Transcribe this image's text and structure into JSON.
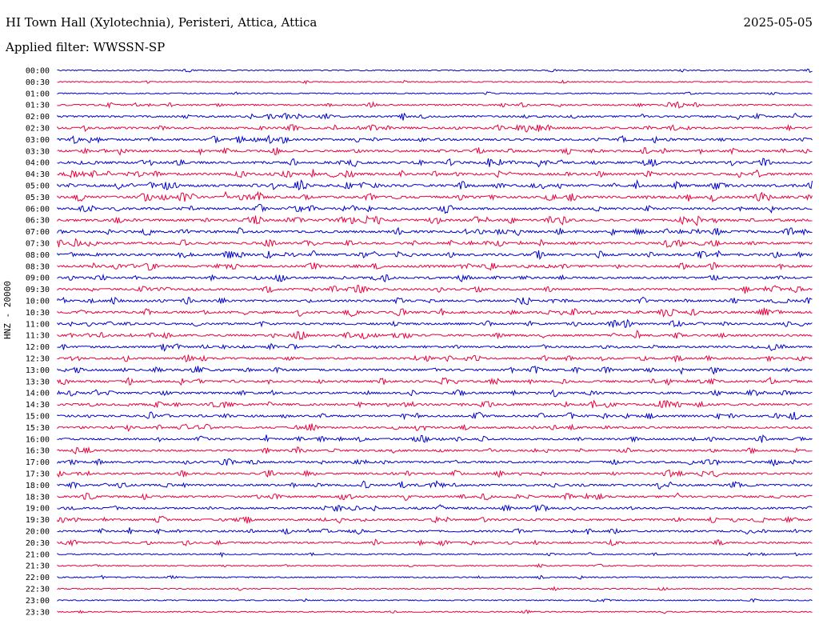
{
  "header": {
    "station": "HI Town Hall (Xylotechnia), Peristeri, Attica, Attica",
    "date": "2025-05-05",
    "filter": "Applied filter: WWSSN-SP"
  },
  "chart_data": {
    "type": "line",
    "title": "HI Town Hall (Xylotechnia), Peristeri, Attica, Attica",
    "ylabel": "HNZ - 20000",
    "xlabel": "",
    "row_labels": [
      "00:00",
      "00:30",
      "01:00",
      "01:30",
      "02:00",
      "02:30",
      "03:00",
      "03:30",
      "04:00",
      "04:30",
      "05:00",
      "05:30",
      "06:00",
      "06:30",
      "07:00",
      "07:30",
      "08:00",
      "08:30",
      "09:00",
      "09:30",
      "10:00",
      "10:30",
      "11:00",
      "11:30",
      "12:00",
      "12:30",
      "13:00",
      "13:30",
      "14:00",
      "14:30",
      "15:00",
      "15:30",
      "16:00",
      "16:30",
      "17:00",
      "17:30",
      "18:00",
      "18:30",
      "19:00",
      "19:30",
      "20:00",
      "20:30",
      "21:00",
      "21:30",
      "22:00",
      "22:30",
      "23:00",
      "23:30"
    ],
    "trace_colors": [
      "#0000cc",
      "#e8003d"
    ],
    "row_activity": [
      0.1,
      0.1,
      0.1,
      0.35,
      0.45,
      0.55,
      0.6,
      0.6,
      0.7,
      0.7,
      0.75,
      0.75,
      0.6,
      0.7,
      0.7,
      0.65,
      0.7,
      0.65,
      0.55,
      0.55,
      0.6,
      0.65,
      0.55,
      0.6,
      0.5,
      0.5,
      0.6,
      0.6,
      0.55,
      0.6,
      0.55,
      0.5,
      0.5,
      0.5,
      0.55,
      0.5,
      0.55,
      0.55,
      0.5,
      0.5,
      0.5,
      0.4,
      0.2,
      0.15,
      0.15,
      0.1,
      0.1,
      0.1
    ],
    "grid": false
  }
}
